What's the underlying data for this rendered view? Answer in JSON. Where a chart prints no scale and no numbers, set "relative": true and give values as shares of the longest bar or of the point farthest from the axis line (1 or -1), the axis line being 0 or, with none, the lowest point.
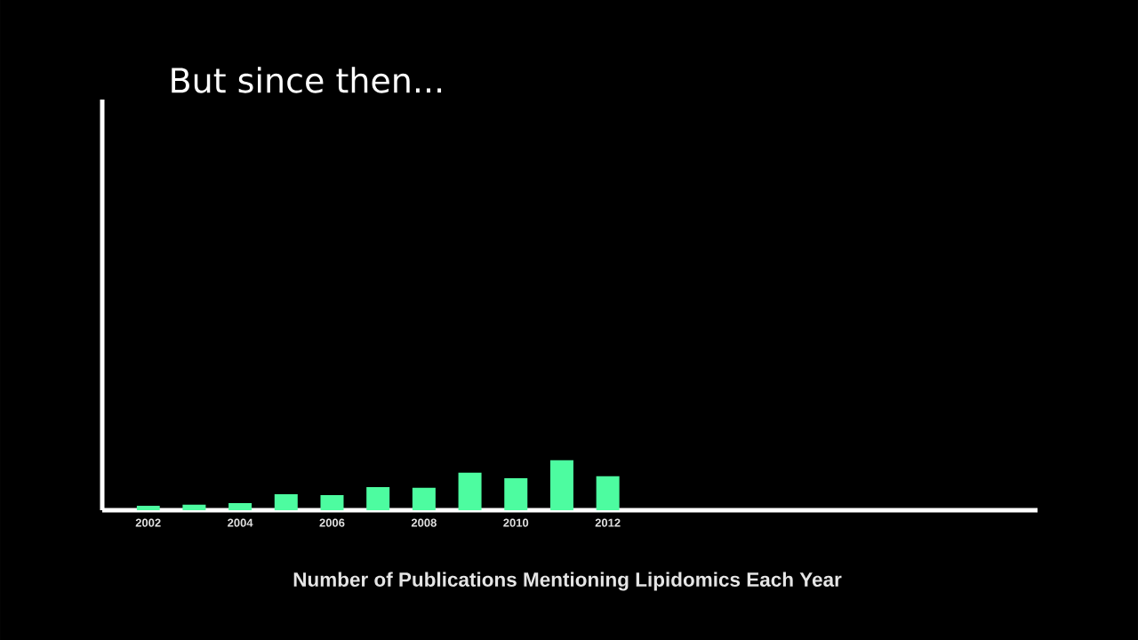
{
  "chart_data": {
    "type": "bar",
    "title": "But since then...",
    "xlabel": "Number of Publications Mentioning Lipidomics Each Year",
    "categories": [
      "2002",
      null,
      "2004",
      null,
      "2006",
      null,
      "2008",
      null,
      "2010",
      null,
      "2012",
      null,
      null,
      null,
      null,
      null,
      null,
      null,
      null,
      null
    ],
    "values": [
      0.09,
      0.11,
      0.14,
      0.32,
      0.3,
      0.46,
      0.45,
      0.75,
      0.64,
      1,
      0.68,
      null,
      null,
      null,
      null,
      null,
      null,
      null,
      null,
      null
    ],
    "color": "#4dfca0",
    "relative": true,
    "grid": false
  }
}
